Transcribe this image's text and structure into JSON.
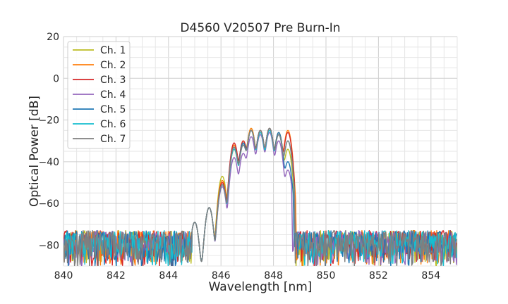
{
  "chart_data": {
    "type": "line",
    "title": "D4560 V20507 Pre Burn-In",
    "xlabel": "Wavelength [nm]",
    "ylabel": "Optical Power [dB]",
    "xlim": [
      840,
      855
    ],
    "ylim": [
      -90,
      20
    ],
    "xticks": [
      840,
      842,
      844,
      846,
      848,
      850,
      852,
      854
    ],
    "yticks": [
      -80,
      -60,
      -40,
      -20,
      0,
      20
    ],
    "xtick_labels": [
      "840",
      "842",
      "844",
      "846",
      "848",
      "850",
      "852",
      "854"
    ],
    "ytick_labels": [
      "−80",
      "−60",
      "−40",
      "−20",
      "0",
      "20"
    ],
    "grid": true,
    "legend_position": "top-left",
    "noise_floor_dB": [
      -90,
      -72
    ],
    "series": [
      {
        "name": "Ch. 1",
        "color": "#bcbd22",
        "peaks": [
          [
            845.0,
            -69
          ],
          [
            845.55,
            -62
          ],
          [
            846.05,
            -47
          ],
          [
            846.5,
            -34
          ],
          [
            846.85,
            -30
          ],
          [
            847.15,
            -24
          ],
          [
            847.5,
            -25
          ],
          [
            847.85,
            -24
          ],
          [
            848.2,
            -26
          ],
          [
            848.55,
            -34
          ]
        ],
        "band": [
          844.9,
          848.8
        ]
      },
      {
        "name": "Ch. 2",
        "color": "#ff7f0e",
        "peaks": [
          [
            845.0,
            -69
          ],
          [
            845.55,
            -62
          ],
          [
            846.05,
            -49
          ],
          [
            846.5,
            -32
          ],
          [
            846.85,
            -31
          ],
          [
            847.15,
            -24
          ],
          [
            847.5,
            -25
          ],
          [
            847.85,
            -24
          ],
          [
            848.2,
            -26
          ],
          [
            848.55,
            -25
          ]
        ],
        "band": [
          844.9,
          848.85
        ]
      },
      {
        "name": "Ch. 3",
        "color": "#d62728",
        "peaks": [
          [
            845.0,
            -69
          ],
          [
            845.55,
            -62
          ],
          [
            846.05,
            -50
          ],
          [
            846.5,
            -31
          ],
          [
            846.85,
            -30
          ],
          [
            847.15,
            -25
          ],
          [
            847.5,
            -25
          ],
          [
            847.85,
            -24
          ],
          [
            848.2,
            -27
          ],
          [
            848.55,
            -26
          ]
        ],
        "band": [
          844.9,
          848.8
        ]
      },
      {
        "name": "Ch. 4",
        "color": "#9467bd",
        "peaks": [
          [
            845.0,
            -69
          ],
          [
            845.55,
            -62
          ],
          [
            846.05,
            -52
          ],
          [
            846.5,
            -38
          ],
          [
            846.85,
            -36
          ],
          [
            847.15,
            -28
          ],
          [
            847.5,
            -27
          ],
          [
            847.85,
            -26
          ],
          [
            848.2,
            -30
          ],
          [
            848.55,
            -44
          ]
        ],
        "band": [
          844.9,
          848.7
        ]
      },
      {
        "name": "Ch. 5",
        "color": "#1f77b4",
        "peaks": [
          [
            845.0,
            -69
          ],
          [
            845.55,
            -62
          ],
          [
            846.05,
            -51
          ],
          [
            846.5,
            -33
          ],
          [
            846.85,
            -31
          ],
          [
            847.15,
            -25
          ],
          [
            847.5,
            -25
          ],
          [
            847.85,
            -24
          ],
          [
            848.2,
            -26
          ],
          [
            848.55,
            -40
          ]
        ],
        "band": [
          844.9,
          848.75
        ]
      },
      {
        "name": "Ch. 6",
        "color": "#17becf",
        "peaks": [
          [
            845.0,
            -69
          ],
          [
            845.55,
            -62
          ],
          [
            846.05,
            -51
          ],
          [
            846.5,
            -34
          ],
          [
            846.85,
            -32
          ],
          [
            847.15,
            -25
          ],
          [
            847.5,
            -26
          ],
          [
            847.85,
            -25
          ],
          [
            848.2,
            -27
          ],
          [
            848.55,
            -30
          ]
        ],
        "band": [
          844.9,
          848.8
        ]
      },
      {
        "name": "Ch. 7",
        "color": "#7f7f7f",
        "peaks": [
          [
            845.0,
            -69
          ],
          [
            845.55,
            -62
          ],
          [
            846.05,
            -51
          ],
          [
            846.5,
            -33
          ],
          [
            846.85,
            -32
          ],
          [
            847.15,
            -25
          ],
          [
            847.5,
            -25
          ],
          [
            847.85,
            -24
          ],
          [
            848.2,
            -27
          ],
          [
            848.55,
            -30
          ]
        ],
        "band": [
          844.9,
          848.8
        ]
      }
    ]
  }
}
